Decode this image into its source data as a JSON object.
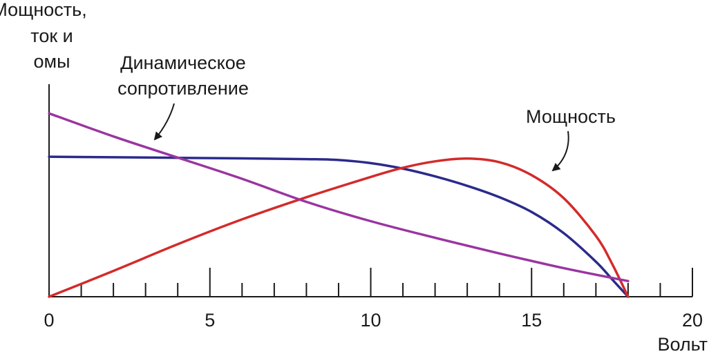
{
  "chart_data": {
    "type": "line",
    "title": "",
    "ylabel_lines": [
      "Мощность,",
      "ток и",
      "омы"
    ],
    "xlabel": "Вольт",
    "xlim": [
      0,
      20
    ],
    "ylim": [
      0,
      1
    ],
    "x_major_ticks": [
      0,
      5,
      10,
      15,
      20
    ],
    "x_major_tick_labels": [
      "0",
      "5",
      "10",
      "15",
      "20"
    ],
    "x_minor_step": 1,
    "grid": false,
    "legend": "none",
    "series": [
      {
        "key": "current",
        "color": "#2b2a8c",
        "x": [
          0,
          2,
          4,
          6,
          8,
          9,
          10,
          11,
          12,
          13,
          14,
          15,
          16,
          17,
          17.5,
          18
        ],
        "y": [
          0.76,
          0.757,
          0.754,
          0.751,
          0.747,
          0.742,
          0.725,
          0.695,
          0.653,
          0.602,
          0.54,
          0.46,
          0.345,
          0.19,
          0.095,
          0.0
        ]
      },
      {
        "key": "power",
        "color": "#d42a2a",
        "x": [
          0,
          2,
          4,
          6,
          8,
          10,
          11,
          12,
          13,
          14,
          15,
          16,
          17,
          17.5,
          18
        ],
        "y": [
          0.0,
          0.14,
          0.285,
          0.42,
          0.54,
          0.65,
          0.7,
          0.735,
          0.75,
          0.73,
          0.66,
          0.535,
          0.33,
          0.18,
          0.0
        ]
      },
      {
        "key": "dynamic_resistance",
        "color": "#9a35a0",
        "x": [
          0,
          2,
          4,
          6,
          8,
          10,
          12,
          14,
          16,
          18
        ],
        "y": [
          0.995,
          0.87,
          0.755,
          0.64,
          0.515,
          0.41,
          0.32,
          0.235,
          0.155,
          0.085
        ]
      }
    ],
    "annotations": [
      {
        "text_lines": [
          "Динамическое",
          "сопротивление"
        ],
        "target_series": "dynamic_resistance",
        "target_x": 3.3
      },
      {
        "text_lines": [
          "Мощность"
        ],
        "target_series": "power",
        "target_x": 15.7
      }
    ]
  }
}
